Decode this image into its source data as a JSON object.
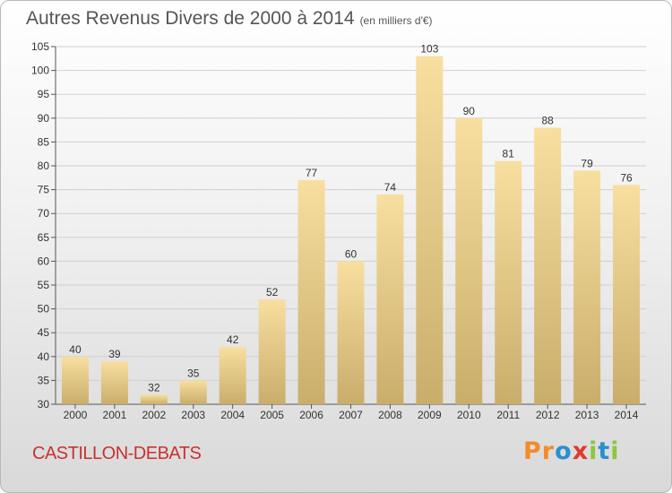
{
  "title": "Autres Revenus Divers de 2000 à 2014",
  "subtitle": "(en milliers d'€)",
  "location": "CASTILLON-DEBATS",
  "logo": {
    "letters": [
      "P",
      "r",
      "o",
      "x",
      "i",
      "t",
      "i"
    ],
    "colors": [
      "#f28c28",
      "#f28c28",
      "#2a8fd0",
      "#e03a2c",
      "#8cc63f",
      "#2a8fd0",
      "#8cc63f"
    ]
  },
  "colors": {
    "bar_light": "#f8dfa0",
    "bar_dark": "#c9ad6b",
    "grid": "#d0d0d0",
    "axis": "#555555"
  },
  "chart_data": {
    "type": "bar",
    "categories": [
      "2000",
      "2001",
      "2002",
      "2003",
      "2004",
      "2005",
      "2006",
      "2007",
      "2008",
      "2009",
      "2010",
      "2011",
      "2012",
      "2013",
      "2014"
    ],
    "values": [
      40,
      39,
      32,
      35,
      42,
      52,
      77,
      60,
      74,
      103,
      90,
      81,
      88,
      79,
      76
    ],
    "ylim": [
      30,
      105
    ],
    "yticks": [
      30,
      35,
      40,
      45,
      50,
      55,
      60,
      65,
      70,
      75,
      80,
      85,
      90,
      95,
      100,
      105
    ],
    "grid": "horizontal",
    "xlabel": "",
    "ylabel": ""
  }
}
